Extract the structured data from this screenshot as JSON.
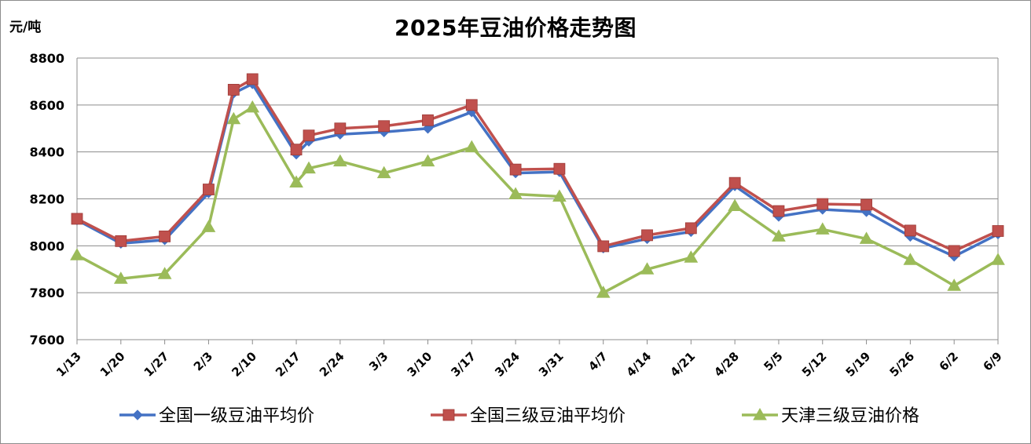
{
  "chart_data": {
    "type": "line",
    "title": "2025年豆油价格走势图",
    "ylabel": "元/吨",
    "xlabel": "",
    "ylim": [
      7600,
      8800
    ],
    "yticks": [
      7600,
      7800,
      8000,
      8200,
      8400,
      8600,
      8800
    ],
    "grid": true,
    "legend_position": "bottom",
    "x": [
      "1/13",
      "1/20",
      "1/27",
      "2/3",
      "2/10",
      "2/17",
      "2/24",
      "3/3",
      "3/10",
      "3/17",
      "3/24",
      "3/31",
      "4/7",
      "4/14",
      "4/21",
      "4/28",
      "5/5",
      "5/12",
      "5/19",
      "5/26",
      "6/2",
      "6/9"
    ],
    "series": [
      {
        "name": "全国一级豆油平均价",
        "color": "#4472C4",
        "marker": "diamond",
        "points": [
          [
            "1/13",
            8110
          ],
          [
            "1/20",
            8010
          ],
          [
            "1/27",
            8025
          ],
          [
            "2/3",
            8225
          ],
          [
            "2/7",
            8650
          ],
          [
            "2/10",
            8690
          ],
          [
            "2/17",
            8390
          ],
          [
            "2/19",
            8445
          ],
          [
            "2/24",
            8475
          ],
          [
            "3/3",
            8485
          ],
          [
            "3/10",
            8500
          ],
          [
            "3/17",
            8570
          ],
          [
            "3/24",
            8310
          ],
          [
            "3/31",
            8315
          ],
          [
            "4/7",
            7990
          ],
          [
            "4/14",
            8030
          ],
          [
            "4/21",
            8060
          ],
          [
            "4/28",
            8255
          ],
          [
            "5/5",
            8125
          ],
          [
            "5/12",
            8155
          ],
          [
            "5/19",
            8145
          ],
          [
            "5/26",
            8040
          ],
          [
            "6/2",
            7955
          ],
          [
            "6/9",
            8050
          ]
        ]
      },
      {
        "name": "全国三级豆油平均价",
        "color": "#C0504D",
        "marker": "square",
        "points": [
          [
            "1/13",
            8115
          ],
          [
            "1/20",
            8020
          ],
          [
            "1/27",
            8040
          ],
          [
            "2/3",
            8240
          ],
          [
            "2/7",
            8665
          ],
          [
            "2/10",
            8710
          ],
          [
            "2/17",
            8410
          ],
          [
            "2/19",
            8470
          ],
          [
            "2/24",
            8500
          ],
          [
            "3/3",
            8510
          ],
          [
            "3/10",
            8535
          ],
          [
            "3/17",
            8600
          ],
          [
            "3/24",
            8325
          ],
          [
            "3/31",
            8328
          ],
          [
            "4/7",
            7998
          ],
          [
            "4/14",
            8045
          ],
          [
            "4/21",
            8075
          ],
          [
            "4/28",
            8268
          ],
          [
            "5/5",
            8148
          ],
          [
            "5/12",
            8178
          ],
          [
            "5/19",
            8175
          ],
          [
            "5/26",
            8065
          ],
          [
            "6/2",
            7978
          ],
          [
            "6/9",
            8063
          ]
        ]
      },
      {
        "name": "天津三级豆油价格",
        "color": "#9BBB59",
        "marker": "triangle",
        "points": [
          [
            "1/13",
            7960
          ],
          [
            "1/20",
            7860
          ],
          [
            "1/27",
            7880
          ],
          [
            "2/3",
            8080
          ],
          [
            "2/7",
            8540
          ],
          [
            "2/10",
            8590
          ],
          [
            "2/17",
            8270
          ],
          [
            "2/19",
            8330
          ],
          [
            "2/24",
            8360
          ],
          [
            "3/3",
            8310
          ],
          [
            "3/10",
            8360
          ],
          [
            "3/17",
            8420
          ],
          [
            "3/24",
            8220
          ],
          [
            "3/31",
            8210
          ],
          [
            "4/7",
            7800
          ],
          [
            "4/14",
            7900
          ],
          [
            "4/21",
            7950
          ],
          [
            "4/28",
            8170
          ],
          [
            "5/5",
            8040
          ],
          [
            "5/12",
            8070
          ],
          [
            "5/19",
            8030
          ],
          [
            "5/26",
            7940
          ],
          [
            "6/2",
            7830
          ],
          [
            "6/9",
            7940
          ]
        ]
      }
    ]
  }
}
